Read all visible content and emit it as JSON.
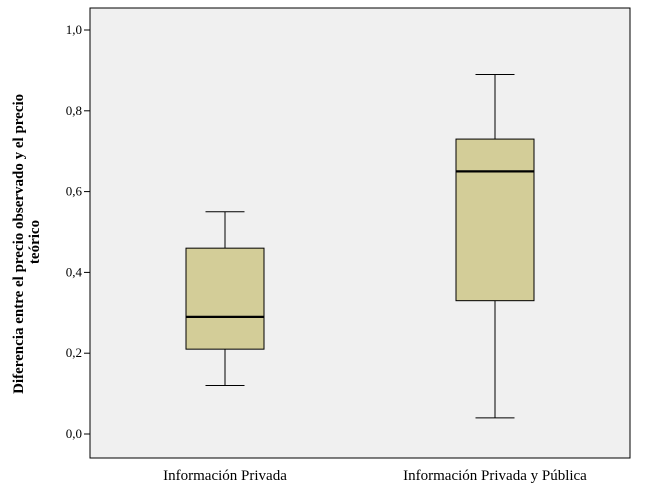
{
  "chart_data": {
    "type": "boxplot",
    "categories": [
      "Información Privada",
      "Información Privada y Pública"
    ],
    "boxes": [
      {
        "category": "Información Privada",
        "min": 0.12,
        "q1": 0.21,
        "median": 0.29,
        "q3": 0.46,
        "max": 0.55
      },
      {
        "category": "Información Privada y Pública",
        "min": 0.04,
        "q1": 0.33,
        "median": 0.65,
        "q3": 0.73,
        "max": 0.89
      }
    ],
    "ylabel_lines": [
      "Diferencia entre el precio observado y el precio",
      "teórico"
    ],
    "ylim": [
      0.0,
      1.0
    ],
    "yticks": [
      0.0,
      0.2,
      0.4,
      0.6,
      0.8,
      1.0
    ],
    "ytick_labels": [
      "0,0",
      "0,2",
      "0,4",
      "0,6",
      "0,8",
      "1,0"
    ],
    "box_fill": "#d3cd98",
    "plot_background": "#f0f0f0",
    "grid": false
  }
}
